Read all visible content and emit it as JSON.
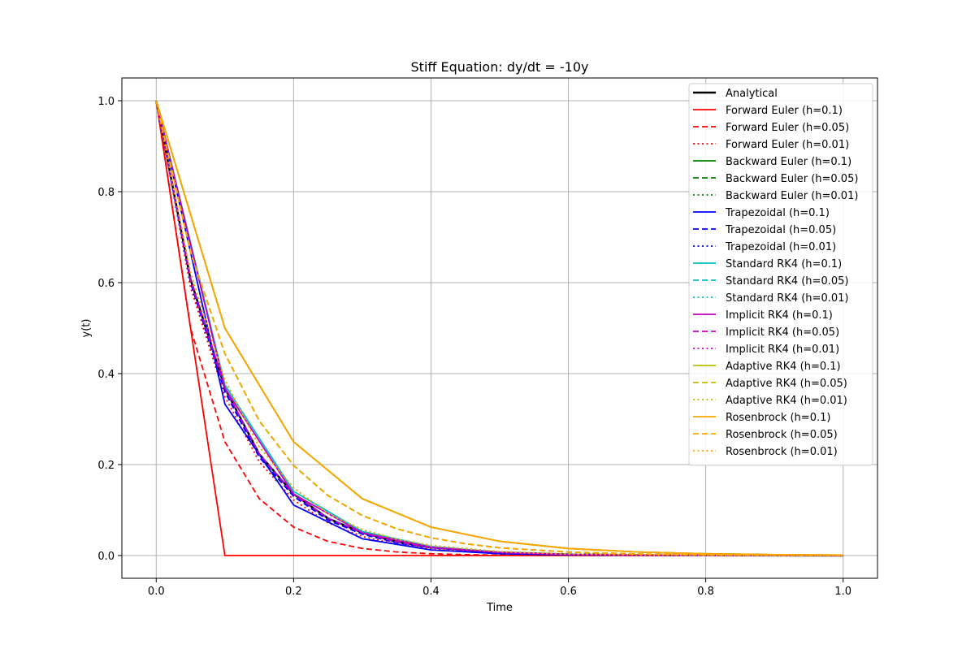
{
  "chart_data": {
    "type": "line",
    "title": "Stiff Equation: dy/dt = -10y",
    "xlabel": "Time",
    "ylabel": "y(t)",
    "xlim": [
      -0.05,
      1.05
    ],
    "ylim": [
      -0.05,
      1.05
    ],
    "xticks": [
      0.0,
      0.2,
      0.4,
      0.6,
      0.8,
      1.0
    ],
    "xtick_labels": [
      "0.0",
      "0.2",
      "0.4",
      "0.6",
      "0.8",
      "1.0"
    ],
    "yticks": [
      0.0,
      0.2,
      0.4,
      0.6,
      0.8,
      1.0
    ],
    "ytick_labels": [
      "0.0",
      "0.2",
      "0.4",
      "0.6",
      "0.8",
      "1.0"
    ],
    "grid": true,
    "legend_position": "top-right",
    "series": [
      {
        "name": "Analytical",
        "color": "#000000",
        "style": "solid",
        "width": 2.5,
        "x": [
          0,
          0.05,
          0.1,
          0.15,
          0.2,
          0.25,
          0.3,
          0.35,
          0.4,
          0.5,
          0.6,
          0.7,
          0.8,
          0.9,
          1.0
        ],
        "y": [
          1.0,
          0.607,
          0.368,
          0.223,
          0.135,
          0.082,
          0.05,
          0.03,
          0.018,
          0.0067,
          0.0025,
          0.0009,
          0.0003,
          0.0001,
          0.0
        ]
      },
      {
        "name": "Forward Euler (h=0.1)",
        "color": "#ff0000",
        "style": "solid",
        "width": 1.8,
        "x": [
          0,
          0.1,
          0.2,
          0.3,
          0.4,
          0.5,
          0.6,
          0.7,
          0.8,
          0.9,
          1.0
        ],
        "y": [
          1.0,
          0.0,
          0.0,
          0.0,
          0.0,
          0.0,
          0.0,
          0.0,
          0.0,
          0.0,
          0.0
        ]
      },
      {
        "name": "Forward Euler (h=0.05)",
        "color": "#ff0000",
        "style": "dashed",
        "width": 1.8,
        "x": [
          0,
          0.05,
          0.1,
          0.15,
          0.2,
          0.25,
          0.3,
          0.35,
          0.4,
          0.45,
          0.5,
          0.6,
          0.7,
          0.8,
          0.9,
          1.0
        ],
        "y": [
          1.0,
          0.5,
          0.25,
          0.125,
          0.0625,
          0.0313,
          0.0156,
          0.0078,
          0.0039,
          0.002,
          0.001,
          0.0002,
          0.0,
          0.0,
          0.0,
          0.0
        ]
      },
      {
        "name": "Forward Euler (h=0.01)",
        "color": "#ff0000",
        "style": "dotted",
        "width": 1.8,
        "x": [
          0,
          0.05,
          0.1,
          0.15,
          0.2,
          0.25,
          0.3,
          0.35,
          0.4,
          0.5,
          0.6,
          0.7,
          0.8,
          0.9,
          1.0
        ],
        "y": [
          1.0,
          0.59,
          0.349,
          0.206,
          0.122,
          0.072,
          0.042,
          0.025,
          0.015,
          0.005,
          0.0018,
          0.0006,
          0.0002,
          0.0001,
          0.0
        ]
      },
      {
        "name": "Backward Euler (h=0.1)",
        "color": "#008000",
        "style": "solid",
        "width": 1.8,
        "x": [
          0,
          0.1,
          0.2,
          0.3,
          0.4,
          0.5,
          0.6,
          0.7,
          0.8,
          0.9,
          1.0
        ],
        "y": [
          1.0,
          0.5,
          0.25,
          0.125,
          0.0625,
          0.0313,
          0.0156,
          0.0078,
          0.0039,
          0.002,
          0.001
        ]
      },
      {
        "name": "Backward Euler (h=0.05)",
        "color": "#008000",
        "style": "dashed",
        "width": 1.8,
        "x": [
          0,
          0.05,
          0.1,
          0.15,
          0.2,
          0.25,
          0.3,
          0.35,
          0.4,
          0.45,
          0.5,
          0.6,
          0.7,
          0.8,
          0.9,
          1.0
        ],
        "y": [
          1.0,
          0.667,
          0.444,
          0.296,
          0.198,
          0.132,
          0.088,
          0.059,
          0.039,
          0.026,
          0.017,
          0.0077,
          0.0034,
          0.0015,
          0.0007,
          0.0003
        ]
      },
      {
        "name": "Backward Euler (h=0.01)",
        "color": "#008000",
        "style": "dotted",
        "width": 1.8,
        "x": [
          0,
          0.05,
          0.1,
          0.15,
          0.2,
          0.25,
          0.3,
          0.35,
          0.4,
          0.5,
          0.6,
          0.7,
          0.8,
          0.9,
          1.0
        ],
        "y": [
          1.0,
          0.621,
          0.386,
          0.239,
          0.149,
          0.092,
          0.057,
          0.036,
          0.022,
          0.0085,
          0.0033,
          0.0013,
          0.0005,
          0.0002,
          0.0001
        ]
      },
      {
        "name": "Trapezoidal (h=0.1)",
        "color": "#0000ff",
        "style": "solid",
        "width": 1.8,
        "x": [
          0,
          0.1,
          0.2,
          0.3,
          0.4,
          0.5,
          0.6,
          0.7,
          0.8,
          0.9,
          1.0
        ],
        "y": [
          1.0,
          0.333,
          0.111,
          0.037,
          0.0123,
          0.0041,
          0.0014,
          0.0005,
          0.0002,
          0.0001,
          0.0
        ]
      },
      {
        "name": "Trapezoidal (h=0.05)",
        "color": "#0000ff",
        "style": "dashed",
        "width": 1.8,
        "x": [
          0,
          0.05,
          0.1,
          0.15,
          0.2,
          0.25,
          0.3,
          0.35,
          0.4,
          0.5,
          0.6,
          0.7,
          0.8,
          0.9,
          1.0
        ],
        "y": [
          1.0,
          0.6,
          0.36,
          0.216,
          0.13,
          0.078,
          0.047,
          0.028,
          0.017,
          0.006,
          0.0022,
          0.0008,
          0.0003,
          0.0001,
          0.0
        ]
      },
      {
        "name": "Trapezoidal (h=0.01)",
        "color": "#0000ff",
        "style": "dotted",
        "width": 1.8,
        "x": [
          0,
          0.05,
          0.1,
          0.15,
          0.2,
          0.25,
          0.3,
          0.35,
          0.4,
          0.5,
          0.6,
          0.7,
          0.8,
          0.9,
          1.0
        ],
        "y": [
          1.0,
          0.607,
          0.368,
          0.223,
          0.135,
          0.082,
          0.05,
          0.03,
          0.018,
          0.0067,
          0.0025,
          0.0009,
          0.0003,
          0.0001,
          0.0
        ]
      },
      {
        "name": "Standard RK4 (h=0.1)",
        "color": "#00bfbf",
        "style": "solid",
        "width": 1.8,
        "x": [
          0,
          0.1,
          0.2,
          0.3,
          0.4,
          0.5,
          0.6,
          0.7,
          0.8,
          0.9,
          1.0
        ],
        "y": [
          1.0,
          0.375,
          0.141,
          0.053,
          0.0198,
          0.0074,
          0.0028,
          0.001,
          0.0004,
          0.0001,
          0.0
        ]
      },
      {
        "name": "Standard RK4 (h=0.05)",
        "color": "#00bfbf",
        "style": "dashed",
        "width": 1.8,
        "x": [
          0,
          0.05,
          0.1,
          0.15,
          0.2,
          0.25,
          0.3,
          0.35,
          0.4,
          0.5,
          0.6,
          0.7,
          0.8,
          0.9,
          1.0
        ],
        "y": [
          1.0,
          0.607,
          0.369,
          0.224,
          0.136,
          0.083,
          0.05,
          0.03,
          0.018,
          0.0068,
          0.0025,
          0.0009,
          0.0003,
          0.0001,
          0.0
        ]
      },
      {
        "name": "Standard RK4 (h=0.01)",
        "color": "#00bfbf",
        "style": "dotted",
        "width": 1.8,
        "x": [
          0,
          0.05,
          0.1,
          0.15,
          0.2,
          0.25,
          0.3,
          0.35,
          0.4,
          0.5,
          0.6,
          0.7,
          0.8,
          0.9,
          1.0
        ],
        "y": [
          1.0,
          0.607,
          0.368,
          0.223,
          0.135,
          0.082,
          0.05,
          0.03,
          0.018,
          0.0067,
          0.0025,
          0.0009,
          0.0003,
          0.0001,
          0.0
        ]
      },
      {
        "name": "Implicit RK4 (h=0.1)",
        "color": "#bf00bf",
        "style": "solid",
        "width": 1.8,
        "x": [
          0,
          0.1,
          0.2,
          0.3,
          0.4,
          0.5,
          0.6,
          0.7,
          0.8,
          0.9,
          1.0
        ],
        "y": [
          1.0,
          0.368,
          0.135,
          0.05,
          0.018,
          0.0067,
          0.0025,
          0.0009,
          0.0003,
          0.0001,
          0.0
        ]
      },
      {
        "name": "Implicit RK4 (h=0.05)",
        "color": "#bf00bf",
        "style": "dashed",
        "width": 1.8,
        "x": [
          0,
          0.05,
          0.1,
          0.15,
          0.2,
          0.25,
          0.3,
          0.35,
          0.4,
          0.5,
          0.6,
          0.7,
          0.8,
          0.9,
          1.0
        ],
        "y": [
          1.0,
          0.607,
          0.368,
          0.223,
          0.135,
          0.082,
          0.05,
          0.03,
          0.018,
          0.0067,
          0.0025,
          0.0009,
          0.0003,
          0.0001,
          0.0
        ]
      },
      {
        "name": "Implicit RK4 (h=0.01)",
        "color": "#bf00bf",
        "style": "dotted",
        "width": 1.8,
        "x": [
          0,
          0.05,
          0.1,
          0.15,
          0.2,
          0.25,
          0.3,
          0.35,
          0.4,
          0.5,
          0.6,
          0.7,
          0.8,
          0.9,
          1.0
        ],
        "y": [
          1.0,
          0.607,
          0.368,
          0.223,
          0.135,
          0.082,
          0.05,
          0.03,
          0.018,
          0.0067,
          0.0025,
          0.0009,
          0.0003,
          0.0001,
          0.0
        ]
      },
      {
        "name": "Adaptive RK4 (h=0.1)",
        "color": "#bfbf00",
        "style": "solid",
        "width": 1.8,
        "x": [
          0,
          0.1,
          0.2,
          0.3,
          0.4,
          0.5,
          0.6,
          0.7,
          0.8,
          0.9,
          1.0
        ],
        "y": [
          1.0,
          0.5,
          0.25,
          0.125,
          0.0625,
          0.0313,
          0.0156,
          0.0078,
          0.0039,
          0.002,
          0.001
        ]
      },
      {
        "name": "Adaptive RK4 (h=0.05)",
        "color": "#bfbf00",
        "style": "dashed",
        "width": 1.8,
        "x": [
          0,
          0.05,
          0.1,
          0.15,
          0.2,
          0.25,
          0.3,
          0.35,
          0.4,
          0.45,
          0.5,
          0.6,
          0.7,
          0.8,
          0.9,
          1.0
        ],
        "y": [
          1.0,
          0.667,
          0.444,
          0.296,
          0.198,
          0.132,
          0.088,
          0.059,
          0.039,
          0.026,
          0.017,
          0.0077,
          0.0034,
          0.0015,
          0.0007,
          0.0003
        ]
      },
      {
        "name": "Adaptive RK4 (h=0.01)",
        "color": "#bfbf00",
        "style": "dotted",
        "width": 1.8,
        "x": [
          0,
          0.05,
          0.1,
          0.15,
          0.2,
          0.25,
          0.3,
          0.35,
          0.4,
          0.5,
          0.6,
          0.7,
          0.8,
          0.9,
          1.0
        ],
        "y": [
          1.0,
          0.621,
          0.386,
          0.239,
          0.149,
          0.092,
          0.057,
          0.036,
          0.022,
          0.0085,
          0.0033,
          0.0013,
          0.0005,
          0.0002,
          0.0001
        ]
      },
      {
        "name": "Rosenbrock (h=0.1)",
        "color": "#ffa500",
        "style": "solid",
        "width": 1.8,
        "x": [
          0,
          0.1,
          0.2,
          0.3,
          0.4,
          0.5,
          0.6,
          0.7,
          0.8,
          0.9,
          1.0
        ],
        "y": [
          1.0,
          0.5,
          0.25,
          0.125,
          0.0625,
          0.0313,
          0.0156,
          0.0078,
          0.0039,
          0.002,
          0.001
        ]
      },
      {
        "name": "Rosenbrock (h=0.05)",
        "color": "#ffa500",
        "style": "dashed",
        "width": 1.8,
        "x": [
          0,
          0.05,
          0.1,
          0.15,
          0.2,
          0.25,
          0.3,
          0.35,
          0.4,
          0.45,
          0.5,
          0.6,
          0.7,
          0.8,
          0.9,
          1.0
        ],
        "y": [
          1.0,
          0.667,
          0.444,
          0.296,
          0.198,
          0.132,
          0.088,
          0.059,
          0.039,
          0.026,
          0.017,
          0.0077,
          0.0034,
          0.0015,
          0.0007,
          0.0003
        ]
      },
      {
        "name": "Rosenbrock (h=0.01)",
        "color": "#ffa500",
        "style": "dotted",
        "width": 1.8,
        "x": [
          0,
          0.05,
          0.1,
          0.15,
          0.2,
          0.25,
          0.3,
          0.35,
          0.4,
          0.5,
          0.6,
          0.7,
          0.8,
          0.9,
          1.0
        ],
        "y": [
          1.0,
          0.621,
          0.386,
          0.239,
          0.149,
          0.092,
          0.057,
          0.036,
          0.022,
          0.0085,
          0.0033,
          0.0013,
          0.0005,
          0.0002,
          0.0001
        ]
      }
    ]
  }
}
